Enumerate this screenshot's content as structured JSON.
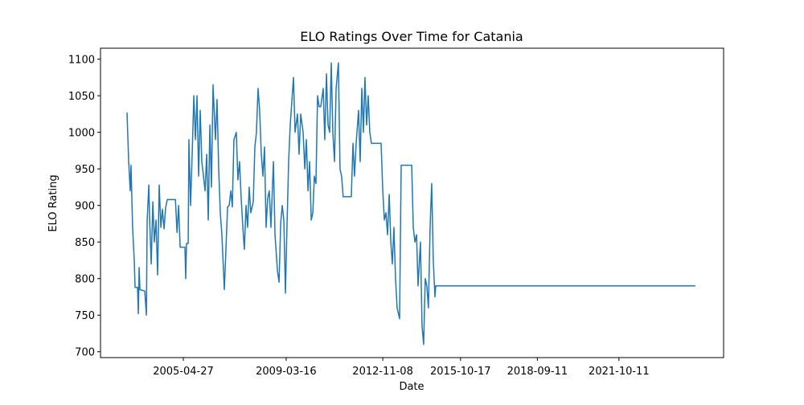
{
  "chart_data": {
    "type": "line",
    "title": "ELO Ratings Over Time for Catania",
    "xlabel": "Date",
    "ylabel": "ELO Rating",
    "color": "#1f77b4",
    "x": [
      "2003-03-12",
      "2003-04-04",
      "2003-04-25",
      "2003-05-06",
      "2003-05-28",
      "2003-06-20",
      "2003-07-01",
      "2003-08-04",
      "2003-08-15",
      "2003-08-26",
      "2003-09-06",
      "2003-11-12",
      "2003-12-04",
      "2003-12-15",
      "2004-01-07",
      "2004-01-18",
      "2004-02-09",
      "2004-03-02",
      "2004-03-23",
      "2004-04-15",
      "2004-05-07",
      "2004-05-29",
      "2004-06-21",
      "2004-07-12",
      "2004-08-04",
      "2004-08-26",
      "2004-09-18",
      "2005-01-08",
      "2005-01-30",
      "2005-02-21",
      "2005-03-14",
      "2005-05-19",
      "2005-05-30",
      "2005-06-10",
      "2005-07-03",
      "2005-07-13",
      "2005-08-05",
      "2005-08-27",
      "2005-09-19",
      "2005-10-11",
      "2005-11-02",
      "2005-11-24",
      "2005-12-16",
      "2006-01-07",
      "2006-01-30",
      "2006-02-21",
      "2006-03-15",
      "2006-04-06",
      "2006-04-28",
      "2006-05-20",
      "2006-06-11",
      "2006-07-14",
      "2006-08-05",
      "2006-08-28",
      "2006-09-19",
      "2006-10-11",
      "2006-11-14",
      "2006-12-06",
      "2006-12-28",
      "2007-01-20",
      "2007-02-11",
      "2007-03-04",
      "2007-03-26",
      "2007-04-28",
      "2007-05-20",
      "2007-06-12",
      "2007-07-04",
      "2007-07-26",
      "2007-08-17",
      "2007-09-09",
      "2007-10-01",
      "2007-10-23",
      "2007-11-14",
      "2007-12-18",
      "2008-01-09",
      "2008-01-31",
      "2008-02-22",
      "2008-03-15",
      "2008-04-07",
      "2008-04-29",
      "2008-05-21",
      "2008-06-12",
      "2008-07-04",
      "2008-07-26",
      "2008-08-18",
      "2008-09-21",
      "2008-10-13",
      "2008-11-16",
      "2008-12-08",
      "2008-12-30",
      "2009-01-21",
      "2009-02-12",
      "2009-03-06",
      "2009-03-27",
      "2009-04-19",
      "2009-05-11",
      "2009-06-25",
      "2009-07-17",
      "2009-08-19",
      "2009-09-10",
      "2009-10-03",
      "2009-11-05",
      "2009-11-28",
      "2009-12-20",
      "2010-01-11",
      "2010-02-02",
      "2010-02-25",
      "2010-03-19",
      "2010-04-09",
      "2010-05-01",
      "2010-05-23",
      "2010-06-14",
      "2010-07-06",
      "2010-08-09",
      "2010-08-31",
      "2010-09-23",
      "2010-10-15",
      "2010-11-06",
      "2010-11-28",
      "2010-12-20",
      "2011-01-12",
      "2011-02-03",
      "2011-03-07",
      "2011-03-29",
      "2011-04-20",
      "2011-05-12",
      "2011-09-01",
      "2011-09-24",
      "2011-10-15",
      "2011-11-07",
      "2011-12-10",
      "2012-01-01",
      "2012-01-24",
      "2012-02-15",
      "2012-03-07",
      "2012-03-30",
      "2012-04-21",
      "2012-05-13",
      "2012-06-04",
      "2012-10-16",
      "2012-11-08",
      "2012-11-30",
      "2012-12-22",
      "2013-01-13",
      "2013-02-05",
      "2013-02-27",
      "2013-03-20",
      "2013-04-11",
      "2013-05-03",
      "2013-05-25",
      "2013-06-28",
      "2013-07-20",
      "2013-12-12",
      "2014-01-03",
      "2014-01-26",
      "2014-02-17",
      "2014-03-10",
      "2014-04-12",
      "2014-05-04",
      "2014-05-26",
      "2014-06-17",
      "2014-07-09",
      "2014-07-31",
      "2014-08-23",
      "2014-09-14",
      "2014-10-06",
      "2014-10-29",
      "2014-11-09",
      "2024-08-30"
    ],
    "values": [
      1027,
      960,
      920,
      955,
      870,
      825,
      788,
      788,
      752,
      815,
      785,
      783,
      750,
      880,
      928,
      880,
      820,
      905,
      850,
      880,
      805,
      928,
      870,
      895,
      868,
      897,
      908,
      908,
      863,
      900,
      843,
      843,
      800,
      848,
      848,
      990,
      900,
      970,
      1050,
      990,
      1050,
      940,
      1030,
      960,
      940,
      920,
      970,
      880,
      1010,
      925,
      1065,
      990,
      1045,
      950,
      890,
      860,
      785,
      840,
      898,
      900,
      920,
      898,
      990,
      1000,
      935,
      960,
      910,
      872,
      840,
      900,
      870,
      925,
      890,
      905,
      980,
      1000,
      1060,
      1030,
      970,
      940,
      980,
      870,
      910,
      920,
      870,
      960,
      860,
      810,
      795,
      875,
      900,
      880,
      780,
      870,
      960,
      1010,
      1075,
      1000,
      1025,
      970,
      1025,
      1000,
      950,
      990,
      920,
      960,
      880,
      890,
      940,
      930,
      1050,
      1035,
      1035,
      1060,
      990,
      1080,
      1010,
      1000,
      1095,
      1000,
      960,
      1060,
      1095,
      950,
      940,
      912,
      912,
      985,
      940,
      985,
      1030,
      960,
      1060,
      1000,
      1075,
      1010,
      1050,
      1000,
      985,
      985,
      920,
      880,
      890,
      860,
      915,
      850,
      820,
      870,
      800,
      760,
      745,
      955,
      955,
      870,
      850,
      860,
      790,
      850,
      735,
      710,
      800,
      790,
      760,
      870,
      930,
      825,
      775,
      790,
      790
    ],
    "xlim": [
      "2002-03-11",
      "2025-09-24"
    ],
    "xticks": [
      "2005-04-27",
      "2009-03-16",
      "2012-11-08",
      "2015-10-17",
      "2018-09-11",
      "2021-10-11"
    ],
    "ylim": [
      692,
      1115
    ],
    "yticks": [
      700,
      750,
      800,
      850,
      900,
      950,
      1000,
      1050,
      1100
    ]
  }
}
